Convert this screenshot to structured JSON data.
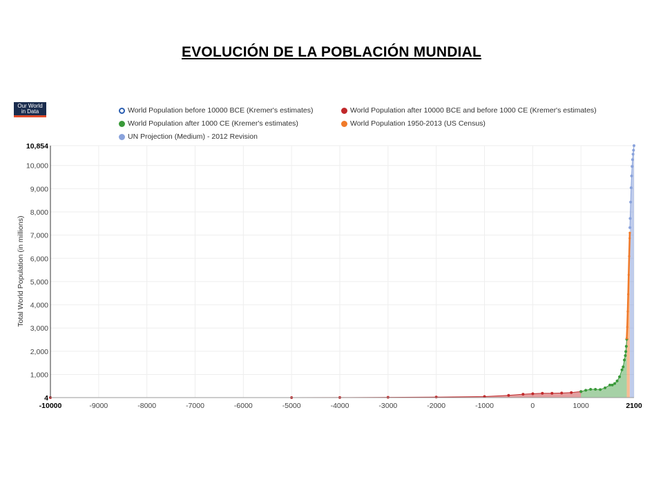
{
  "slide": {
    "title": "EVOLUCIÓN DE LA POBLACIÓN MUNDIAL"
  },
  "logo": {
    "line1": "Our World",
    "line2": "in Data"
  },
  "colors": {
    "before10000": "#2a5db0",
    "after10000": "#c0282a",
    "after1000": "#3a9a3a",
    "census": "#f07a2a",
    "un": "#8aa3dc"
  },
  "chart_data": {
    "type": "area",
    "ylabel": "Total World Population (in millions)",
    "xlim": [
      -10000,
      2100
    ],
    "ylim": [
      4,
      10854
    ],
    "x_ticks": [
      -10000,
      -9000,
      -8000,
      -7000,
      -6000,
      -5000,
      -4000,
      -3000,
      -2000,
      -1000,
      0,
      1000,
      2100
    ],
    "x_tick_labels": [
      "-10000",
      "-9000",
      "-8000",
      "-7000",
      "-6000",
      "-5000",
      "-4000",
      "-3000",
      "-2000",
      "-1000",
      "0",
      "1000",
      "2100"
    ],
    "y_ticks": [
      4,
      1000,
      2000,
      3000,
      4000,
      5000,
      6000,
      7000,
      8000,
      9000,
      10000,
      10854
    ],
    "y_tick_labels": [
      "4",
      "1,000",
      "2,000",
      "3,000",
      "4,000",
      "5,000",
      "6,000",
      "7,000",
      "8,000",
      "9,000",
      "10,000",
      "10,854"
    ],
    "grid": true,
    "legend_position": "top",
    "series": [
      {
        "name": "World Population before 10000 BCE (Kremer's estimates)",
        "color_key": "before10000",
        "marker": "hollow",
        "x": [],
        "y": []
      },
      {
        "name": "World Population after 10000 BCE and before 1000 CE (Kremer's estimates)",
        "color_key": "after10000",
        "marker": "filled",
        "x": [
          -10000,
          -5000,
          -4000,
          -3000,
          -2000,
          -1000,
          -500,
          -200,
          1,
          200,
          400,
          600,
          800,
          1000
        ],
        "y": [
          4,
          5,
          7,
          14,
          27,
          50,
          100,
          150,
          170,
          190,
          190,
          200,
          220,
          265
        ]
      },
      {
        "name": "World Population after 1000 CE (Kremer's estimates)",
        "color_key": "after1000",
        "marker": "filled",
        "x": [
          1000,
          1100,
          1200,
          1300,
          1400,
          1500,
          1600,
          1650,
          1700,
          1750,
          1800,
          1850,
          1875,
          1900,
          1920,
          1930,
          1940,
          1950
        ],
        "y": [
          265,
          320,
          360,
          360,
          350,
          425,
          545,
          545,
          610,
          720,
          900,
          1200,
          1325,
          1625,
          1813,
          1987,
          2213,
          2516
        ]
      },
      {
        "name": "World Population 1950-2013 (US Census)",
        "color_key": "census",
        "marker": "filled",
        "x": [
          1950,
          1960,
          1970,
          1980,
          1990,
          2000,
          2010,
          2013
        ],
        "y": [
          2557,
          3043,
          3712,
          4451,
          5287,
          6090,
          6866,
          7100
        ]
      },
      {
        "name": "UN Projection (Medium) - 2012 Revision",
        "color_key": "un",
        "marker": "filled",
        "x": [
          2015,
          2020,
          2030,
          2040,
          2050,
          2060,
          2070,
          2080,
          2090,
          2100
        ],
        "y": [
          7325,
          7717,
          8425,
          9039,
          9551,
          9957,
          10251,
          10487,
          10657,
          10854
        ]
      }
    ]
  }
}
